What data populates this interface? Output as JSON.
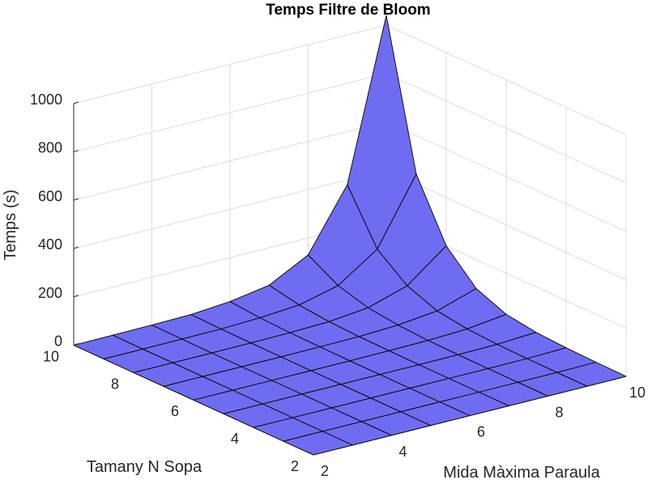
{
  "chart_data": {
    "type": "surface3d",
    "title": "Temps Filtre de Bloom",
    "xlabel": "Mida Màxima Paraula",
    "ylabel": "Tamany N Sopa",
    "zlabel": "Temps (s)",
    "x": [
      2,
      3,
      4,
      5,
      6,
      7,
      8,
      9,
      10
    ],
    "y": [
      2,
      3,
      4,
      5,
      6,
      7,
      8,
      9,
      10
    ],
    "xlim": [
      2,
      10
    ],
    "ylim": [
      2,
      10
    ],
    "zlim": [
      0,
      1000
    ],
    "x_ticks": [
      2,
      4,
      6,
      8,
      10
    ],
    "y_ticks": [
      2,
      4,
      6,
      8,
      10
    ],
    "z_ticks": [
      0,
      200,
      400,
      600,
      800,
      1000
    ],
    "grid": true,
    "face_color": "#6a66f0",
    "edge_color": "#000000",
    "z_rows_by_y": [
      [
        0,
        0,
        0,
        0,
        0,
        0,
        0,
        0,
        0
      ],
      [
        0,
        0,
        0,
        0,
        0,
        0,
        0,
        0,
        2
      ],
      [
        0,
        0,
        0,
        0,
        0,
        0,
        0,
        1,
        5
      ],
      [
        0,
        0,
        0,
        0,
        0,
        0,
        1,
        3,
        12
      ],
      [
        0,
        0,
        0,
        0,
        0,
        1,
        3,
        10,
        30
      ],
      [
        0,
        0,
        0,
        0,
        1,
        3,
        10,
        28,
        80
      ],
      [
        0,
        0,
        0,
        1,
        3,
        8,
        25,
        75,
        200
      ],
      [
        0,
        0,
        1,
        2,
        8,
        20,
        60,
        170,
        440
      ],
      [
        0,
        1,
        2,
        5,
        18,
        45,
        130,
        380,
        1040
      ]
    ]
  }
}
